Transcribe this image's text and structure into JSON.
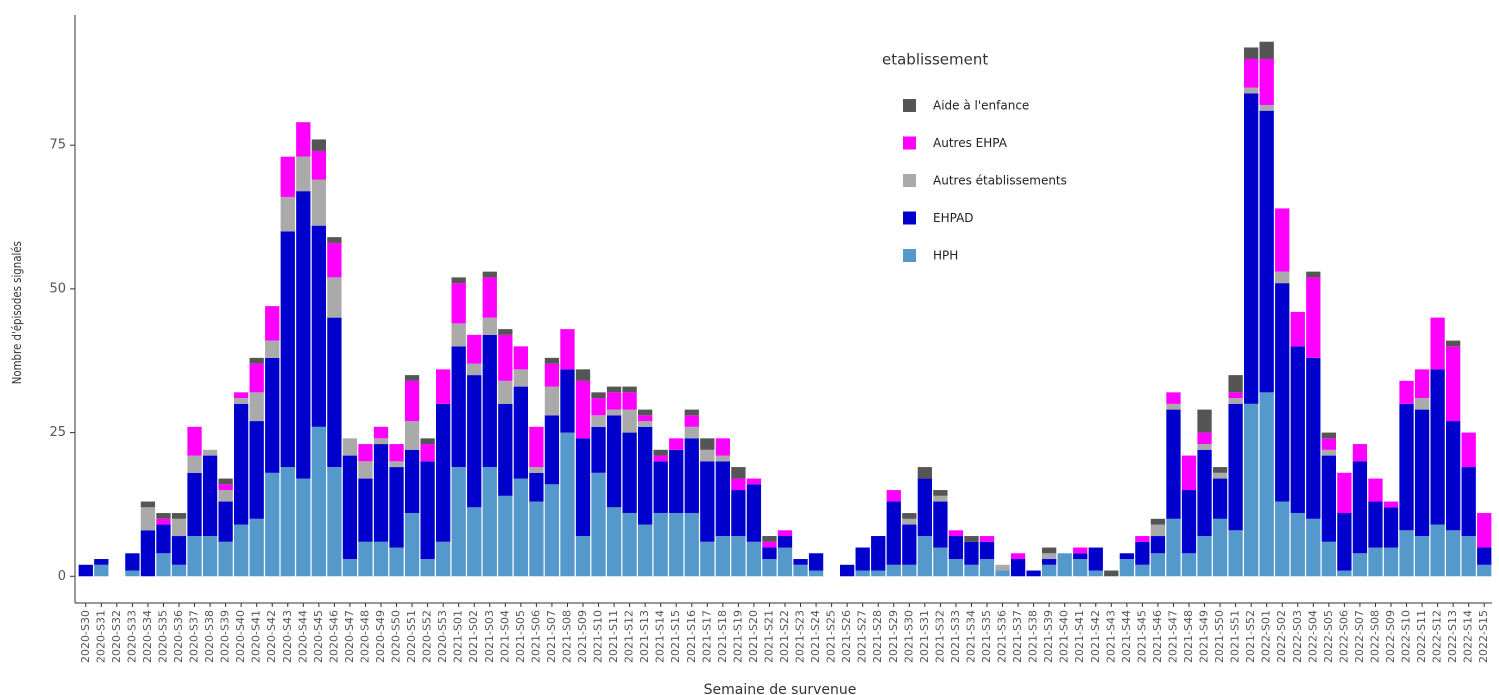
{
  "chart_data": {
    "type": "stacked_bar",
    "x_label": "Semaine de survenue",
    "y_label": "Nombre d'épisodes signalés",
    "legend_title": "etablissement",
    "ylim": [
      -4.65,
      97.65
    ],
    "yticks": [
      0,
      25,
      50,
      75
    ],
    "grid": false,
    "legend_position": "top-right",
    "categories": [
      "2020-S30",
      "2020-S31",
      "2020-S32",
      "2020-S33",
      "2020-S34",
      "2020-S35",
      "2020-S36",
      "2020-S37",
      "2020-S38",
      "2020-S39",
      "2020-S40",
      "2020-S41",
      "2020-S42",
      "2020-S43",
      "2020-S44",
      "2020-S45",
      "2020-S46",
      "2020-S47",
      "2020-S48",
      "2020-S49",
      "2020-S50",
      "2020-S51",
      "2020-S52",
      "2020-S53",
      "2021-S01",
      "2021-S02",
      "2021-S03",
      "2021-S04",
      "2021-S05",
      "2021-S06",
      "2021-S07",
      "2021-S08",
      "2021-S09",
      "2021-S10",
      "2021-S11",
      "2021-S12",
      "2021-S13",
      "2021-S14",
      "2021-S15",
      "2021-S16",
      "2021-S17",
      "2021-S18",
      "2021-S19",
      "2021-S20",
      "2021-S21",
      "2021-S22",
      "2021-S23",
      "2021-S24",
      "2021-S25",
      "2021-S26",
      "2021-S27",
      "2021-S28",
      "2021-S29",
      "2021-S30",
      "2021-S31",
      "2021-S32",
      "2021-S33",
      "2021-S34",
      "2021-S35",
      "2021-S36",
      "2021-S37",
      "2021-S38",
      "2021-S39",
      "2021-S40",
      "2021-S41",
      "2021-S42",
      "2021-S43",
      "2021-S44",
      "2021-S45",
      "2021-S46",
      "2021-S47",
      "2021-S48",
      "2021-S49",
      "2021-S50",
      "2021-S51",
      "2021-S52",
      "2022-S01",
      "2022-S02",
      "2022-S03",
      "2022-S04",
      "2022-S05",
      "2022-S06",
      "2022-S07",
      "2022-S08",
      "2022-S09",
      "2022-S10",
      "2022-S11",
      "2022-S12",
      "2022-S13",
      "2022-S14",
      "2022-S15"
    ],
    "series": [
      {
        "name": "Aide à l'enfance",
        "color": "#555555",
        "values": [
          0,
          0,
          0,
          0,
          1,
          1,
          1,
          0,
          0,
          1,
          0,
          1,
          0,
          0,
          0,
          2,
          1,
          0,
          0,
          0,
          0,
          1,
          1,
          0,
          1,
          0,
          1,
          1,
          0,
          0,
          1,
          0,
          2,
          1,
          1,
          1,
          1,
          1,
          0,
          1,
          2,
          0,
          2,
          0,
          1,
          0,
          0,
          0,
          0,
          0,
          0,
          0,
          0,
          1,
          2,
          1,
          0,
          1,
          0,
          0,
          0,
          0,
          1,
          0,
          0,
          0,
          1,
          0,
          0,
          1,
          0,
          0,
          4,
          1,
          3,
          2,
          3,
          0,
          0,
          1,
          1,
          0,
          0,
          0,
          0,
          0,
          0,
          0,
          1,
          0,
          0
        ]
      },
      {
        "name": "Autres EHPA",
        "color": "#ff00ff",
        "values": [
          0,
          0,
          0,
          0,
          0,
          1,
          0,
          5,
          0,
          1,
          1,
          5,
          6,
          7,
          6,
          5,
          6,
          0,
          3,
          2,
          3,
          7,
          3,
          6,
          7,
          5,
          7,
          8,
          4,
          7,
          4,
          7,
          10,
          3,
          3,
          3,
          1,
          1,
          2,
          2,
          0,
          3,
          2,
          1,
          1,
          1,
          0,
          0,
          0,
          0,
          0,
          0,
          2,
          0,
          0,
          0,
          1,
          0,
          1,
          0,
          1,
          0,
          0,
          0,
          1,
          0,
          0,
          0,
          1,
          0,
          2,
          6,
          2,
          0,
          1,
          5,
          8,
          11,
          6,
          14,
          2,
          7,
          3,
          4,
          1,
          4,
          5,
          9,
          13,
          6,
          6
        ]
      },
      {
        "name": "Autres établissements",
        "color": "#aaaaaa",
        "values": [
          0,
          0,
          0,
          0,
          4,
          0,
          3,
          3,
          1,
          2,
          1,
          5,
          3,
          6,
          6,
          8,
          7,
          3,
          3,
          1,
          1,
          5,
          0,
          0,
          4,
          2,
          3,
          4,
          3,
          1,
          5,
          0,
          0,
          2,
          1,
          4,
          1,
          0,
          0,
          2,
          2,
          1,
          0,
          0,
          0,
          0,
          0,
          0,
          0,
          0,
          0,
          0,
          0,
          1,
          0,
          1,
          0,
          0,
          0,
          1,
          0,
          0,
          1,
          0,
          0,
          0,
          0,
          0,
          0,
          2,
          1,
          0,
          1,
          1,
          1,
          1,
          1,
          2,
          0,
          0,
          1,
          0,
          0,
          0,
          0,
          0,
          2,
          0,
          0,
          0,
          0
        ]
      },
      {
        "name": "EHPAD",
        "color": "#0000cd",
        "values": [
          2,
          1,
          0,
          3,
          8,
          5,
          5,
          11,
          14,
          7,
          21,
          17,
          20,
          41,
          50,
          35,
          26,
          18,
          11,
          17,
          14,
          11,
          17,
          24,
          21,
          23,
          23,
          16,
          16,
          5,
          12,
          11,
          17,
          8,
          16,
          14,
          17,
          9,
          11,
          13,
          14,
          13,
          8,
          10,
          2,
          2,
          1,
          3,
          0,
          2,
          4,
          6,
          11,
          7,
          10,
          8,
          4,
          4,
          3,
          0,
          3,
          1,
          1,
          0,
          1,
          4,
          0,
          1,
          4,
          3,
          19,
          11,
          15,
          7,
          22,
          54,
          49,
          38,
          29,
          28,
          15,
          10,
          16,
          8,
          7,
          22,
          22,
          27,
          19,
          12,
          3
        ]
      },
      {
        "name": "HPH",
        "color": "#5599cc",
        "values": [
          0,
          2,
          0,
          1,
          0,
          4,
          2,
          7,
          7,
          6,
          9,
          10,
          18,
          19,
          17,
          26,
          19,
          3,
          6,
          6,
          5,
          11,
          3,
          6,
          19,
          12,
          19,
          14,
          17,
          13,
          16,
          25,
          7,
          18,
          12,
          11,
          9,
          11,
          11,
          11,
          6,
          7,
          7,
          6,
          3,
          5,
          2,
          1,
          0,
          0,
          1,
          1,
          2,
          2,
          7,
          5,
          3,
          2,
          3,
          1,
          0,
          0,
          2,
          4,
          3,
          1,
          0,
          3,
          2,
          4,
          10,
          4,
          7,
          10,
          8,
          30,
          32,
          13,
          11,
          10,
          6,
          1,
          4,
          5,
          5,
          8,
          7,
          9,
          8,
          7,
          2
        ]
      }
    ]
  }
}
